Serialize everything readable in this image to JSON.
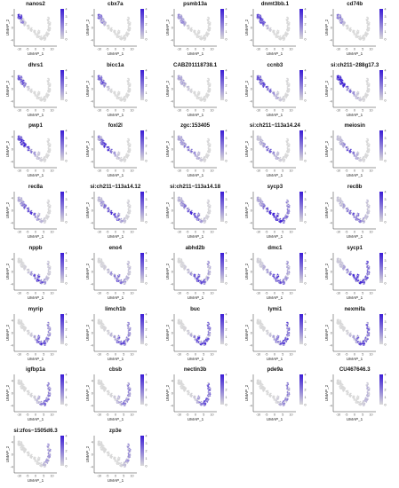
{
  "chart_data": {
    "type": "scatter",
    "panel_count": 37,
    "layout": {
      "columns": 5,
      "rows": 8
    },
    "xlabel": "UMAP_1",
    "ylabel": "UMAP_2",
    "x_ticks": [
      -10,
      -5,
      0,
      5,
      10
    ],
    "y_ticks": [
      -4,
      0,
      4
    ],
    "colorscale": {
      "low": "#d9d9d9",
      "high": "#3b1cd6"
    },
    "panels": [
      {
        "gene": "nanos2",
        "color_max": 4
      },
      {
        "gene": "cbx7a",
        "color_max": 4
      },
      {
        "gene": "psmb13a",
        "color_max": 4
      },
      {
        "gene": "dnmt3bb.1",
        "color_max": 4
      },
      {
        "gene": "cd74b",
        "color_max": 4
      },
      {
        "gene": "dhrs1",
        "color_max": 4
      },
      {
        "gene": "bicc1a",
        "color_max": 4
      },
      {
        "gene": "CABZ01118738.1",
        "color_max": 4
      },
      {
        "gene": "ccnb3",
        "color_max": 4
      },
      {
        "gene": "si:ch211−288g17.3",
        "color_max": 4
      },
      {
        "gene": "pwp1",
        "color_max": 4
      },
      {
        "gene": "foxl2l",
        "color_max": 4
      },
      {
        "gene": "zgc:153405",
        "color_max": 4
      },
      {
        "gene": "si:ch211−113a14.24",
        "color_max": 4
      },
      {
        "gene": "meiosin",
        "color_max": 4
      },
      {
        "gene": "rec8a",
        "color_max": 4
      },
      {
        "gene": "si:ch211−113a14.12",
        "color_max": 4
      },
      {
        "gene": "si:ch211−113a14.18",
        "color_max": 4
      },
      {
        "gene": "sycp3",
        "color_max": 4
      },
      {
        "gene": "rec8b",
        "color_max": 4
      },
      {
        "gene": "nppb",
        "color_max": 4
      },
      {
        "gene": "eno4",
        "color_max": 4
      },
      {
        "gene": "abhd2b",
        "color_max": 4
      },
      {
        "gene": "dmc1",
        "color_max": 4
      },
      {
        "gene": "sycp1",
        "color_max": 4
      },
      {
        "gene": "myrip",
        "color_max": 4
      },
      {
        "gene": "limch1b",
        "color_max": 4
      },
      {
        "gene": "buc",
        "color_max": 4
      },
      {
        "gene": "lymi1",
        "color_max": 4
      },
      {
        "gene": "nexmifa",
        "color_max": 4
      },
      {
        "gene": "igfbp1a",
        "color_max": 4
      },
      {
        "gene": "cbsb",
        "color_max": 4
      },
      {
        "gene": "nectin3b",
        "color_max": 4
      },
      {
        "gene": "pde9a",
        "color_max": 4
      },
      {
        "gene": "CU467646.3",
        "color_max": 4
      },
      {
        "gene": "si:zfos−1505d6.3",
        "color_max": 4
      },
      {
        "gene": "zp3e",
        "color_max": 4
      }
    ]
  }
}
